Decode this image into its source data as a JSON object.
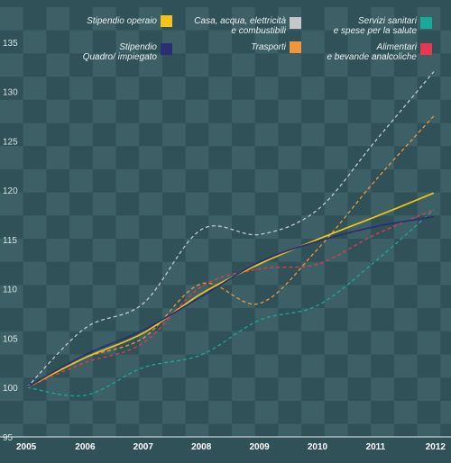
{
  "chart_data": {
    "type": "line",
    "title": "",
    "xlabel": "",
    "ylabel": "",
    "x": [
      "2005",
      "2006",
      "2007",
      "2008",
      "2009",
      "2010",
      "2011",
      "2012"
    ],
    "ylim": [
      95,
      138
    ],
    "yticks": [
      95,
      100,
      105,
      110,
      115,
      120,
      125,
      130,
      135
    ],
    "grid": "checkerboard",
    "legend_position": "top",
    "series": [
      {
        "name": "Stipendio operaio",
        "style": "solid",
        "color": "#f2c418",
        "values": [
          100,
          103,
          105.5,
          109.5,
          112.5,
          115,
          117.3,
          119.7
        ]
      },
      {
        "name": "Stipendio Quadro/ impiegato",
        "style": "solid",
        "color": "#2a2f74",
        "values": [
          100,
          103.3,
          105.8,
          109.2,
          112.7,
          114.8,
          116.3,
          117.3
        ]
      },
      {
        "name": "Casa, acqua, elettricità e combustibili",
        "style": "dashed",
        "color": "#c4c8c8",
        "values": [
          100,
          106,
          108.5,
          116,
          115.5,
          118,
          125,
          132
        ]
      },
      {
        "name": "Trasporti",
        "style": "dashed",
        "color": "#f0963c",
        "values": [
          100,
          103,
          105,
          110.5,
          108.5,
          114,
          121,
          127.5
        ]
      },
      {
        "name": "Servizi sanitari e spese per la salute",
        "style": "dashed",
        "color": "#1aa89a",
        "values": [
          100,
          99.2,
          102,
          103.3,
          106.8,
          108.3,
          112.8,
          118
        ]
      },
      {
        "name": "Alimentari e bevande analcoliche",
        "style": "dashed",
        "color": "#e8384f",
        "values": [
          100,
          102.5,
          104.5,
          110.2,
          112,
          112.5,
          115.5,
          118
        ]
      }
    ],
    "legend": [
      {
        "lines": [
          "Stipendio operaio"
        ],
        "color": "#f2c418"
      },
      {
        "lines": [
          "Casa, acqua, elettricità",
          "e combustibili"
        ],
        "color": "#c4c8c8"
      },
      {
        "lines": [
          "Servizi sanitari",
          "e spese per la salute"
        ],
        "color": "#1aa89a"
      },
      {
        "lines": [
          "Stipendio",
          "Quadro/ impiegato"
        ],
        "color": "#2a2f74"
      },
      {
        "lines": [
          "Trasporti"
        ],
        "color": "#f0963c"
      },
      {
        "lines": [
          "Alimentari",
          "e bevande analcoliche"
        ],
        "color": "#e8384f"
      }
    ],
    "colors": {
      "background": "#2f5157",
      "checker": "#3d6066"
    }
  }
}
